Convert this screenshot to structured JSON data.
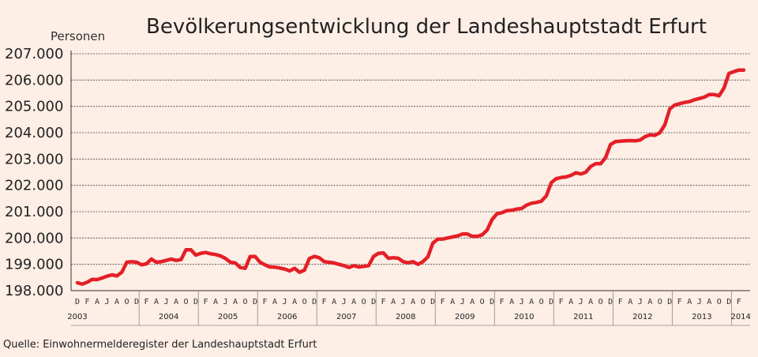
{
  "chart_data": {
    "type": "line",
    "title": "Bevölkerungsentwicklung der Landeshauptstadt Erfurt",
    "ylabel": "Personen",
    "source": "Quelle: Einwohnermelderegister der Landeshauptstadt Erfurt",
    "ylim": [
      198000,
      207000
    ],
    "yticks": [
      198000,
      199000,
      200000,
      201000,
      202000,
      203000,
      204000,
      205000,
      206000,
      207000
    ],
    "ytick_labels": [
      "198.000",
      "199.000",
      "200.000",
      "201.000",
      "202.000",
      "203.000",
      "204.000",
      "205.000",
      "206.000",
      "207.000"
    ],
    "grid": true,
    "first_month_label": "D",
    "month_labels": [
      "F",
      "A",
      "J",
      "A",
      "O",
      "D"
    ],
    "years": [
      "2003",
      "2004",
      "2005",
      "2006",
      "2007",
      "2008",
      "2009",
      "2010",
      "2011",
      "2012",
      "2013",
      "2014"
    ],
    "series": [
      {
        "color": "#e41f26",
        "values": [
          198300,
          198250,
          198320,
          198430,
          198420,
          198480,
          198550,
          198600,
          198560,
          198700,
          199080,
          199100,
          199080,
          198980,
          199020,
          199200,
          199080,
          199100,
          199150,
          199200,
          199150,
          199180,
          199550,
          199550,
          199350,
          199420,
          199450,
          199400,
          199370,
          199320,
          199220,
          199080,
          199050,
          198880,
          198850,
          199300,
          199300,
          199080,
          198980,
          198900,
          198890,
          198860,
          198820,
          198750,
          198850,
          198700,
          198780,
          199220,
          199300,
          199250,
          199100,
          199080,
          199050,
          199000,
          198950,
          198880,
          198950,
          198900,
          198920,
          198950,
          199300,
          199420,
          199430,
          199230,
          199250,
          199230,
          199100,
          199060,
          199100,
          199000,
          199100,
          199280,
          199800,
          199960,
          199960,
          200000,
          200040,
          200080,
          200150,
          200150,
          200060,
          200060,
          200120,
          200300,
          200700,
          200920,
          200960,
          201040,
          201050,
          201100,
          201120,
          201250,
          201320,
          201350,
          201400,
          201600,
          202100,
          202250,
          202300,
          202320,
          202380,
          202480,
          202430,
          202500,
          202720,
          202820,
          202820,
          203050,
          203550,
          203660,
          203680,
          203690,
          203700,
          203690,
          203720,
          203850,
          203920,
          203900,
          204000,
          204300,
          204900,
          205050,
          205100,
          205150,
          205180,
          205250,
          205300,
          205350,
          205450,
          205450,
          205400,
          205700,
          206250,
          206320,
          206380,
          206380
        ]
      }
    ]
  }
}
